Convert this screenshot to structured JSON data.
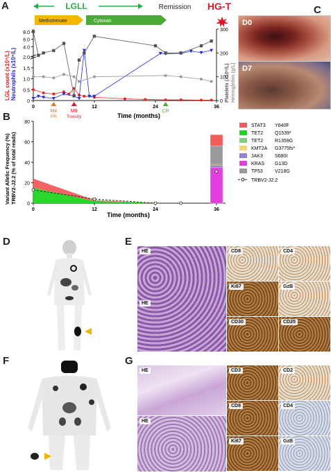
{
  "panels": {
    "A": "A",
    "B": "B",
    "C": "C",
    "D": "D",
    "E": "E",
    "F": "F",
    "G": "G"
  },
  "timeline": {
    "lgll": "LGLL",
    "remission": "Remission",
    "hgt": "HG-T",
    "methotrexate": "Methotrexate",
    "cytoxan": "Cytoxan"
  },
  "colors": {
    "lgl": "#e8241f",
    "neutrophils": "#1f2bd8",
    "platelets": "#555555",
    "hemoglobin": "#999999",
    "methotrexate": "#f5b800",
    "cytoxan": "#4caa3a",
    "green_arrow": "#2aaa4a",
    "hgt": "#e0162b",
    "stat3": "#f25c5c",
    "tet2_q": "#22d422",
    "tet2_r": "#7ed07e",
    "kmt2a": "#f5d76e",
    "jak3": "#9a80d8",
    "kras": "#e040e0",
    "tp53": "#9a9a9a"
  },
  "chart_data": [
    {
      "type": "line",
      "panel": "A",
      "xlabel": "Time (months)",
      "ylabel_left_lgl": "LGL count (x10⁹/L)",
      "ylabel_left_neut": "Neutrophils (x10⁹/L)",
      "ylabel_right_platelets": "Platelets (x10⁹/L)",
      "ylabel_right_hemoglobin": "Hemoglobin (g/L)",
      "x_ticks": [
        "0",
        "12",
        "24",
        "36"
      ],
      "y_left_ticks": [
        "0",
        "0.5",
        "1.0",
        "1.5",
        "2.0",
        "4.0",
        "6.0",
        "8.0"
      ],
      "y_right_ticks": [
        "0",
        "100",
        "200",
        "300"
      ],
      "xlim": [
        0,
        36
      ],
      "annotations": [
        {
          "label": "M4",
          "sub": "PR",
          "x": 4,
          "color": "#e07b20"
        },
        {
          "label": "M8",
          "sub": "Toxicity",
          "x": 8,
          "color": "#e0162b"
        },
        {
          "label": "CR",
          "sub": "",
          "x": 26,
          "color": "#4caa3a"
        }
      ],
      "series": [
        {
          "name": "LGL",
          "x": [
            0,
            2,
            4,
            6,
            7,
            8,
            9,
            10,
            12,
            18,
            22,
            26,
            29,
            33,
            35
          ],
          "y": [
            0.5,
            0.35,
            0.3,
            0.4,
            0.3,
            0.55,
            0.25,
            0.2,
            0.15,
            0.08,
            0.05,
            0.03,
            0.03,
            0.02,
            0.02
          ]
        },
        {
          "name": "Neutrophils",
          "x": [
            0,
            1,
            2,
            4,
            6,
            8,
            9,
            10,
            11,
            12,
            25,
            26,
            29,
            31,
            33,
            35
          ],
          "y": [
            0.1,
            0.2,
            0.15,
            0.1,
            0.3,
            0.2,
            0.1,
            3.0,
            0.2,
            0.2,
            2.2,
            2.1,
            2.2,
            2.8,
            2.4,
            3.0
          ]
        },
        {
          "name": "Platelets",
          "x": [
            0,
            1,
            2,
            4,
            6,
            8,
            9,
            10,
            12,
            24,
            26,
            29,
            33,
            35
          ],
          "y": [
            290,
            190,
            200,
            210,
            240,
            20,
            170,
            200,
            270,
            230,
            200,
            200,
            230,
            250
          ]
        },
        {
          "name": "Hemoglobin",
          "x": [
            0,
            2,
            4,
            6,
            8,
            9,
            12,
            26,
            29,
            33,
            35
          ],
          "y": [
            100,
            100,
            95,
            110,
            100,
            80,
            100,
            105,
            100,
            90,
            80
          ]
        }
      ]
    },
    {
      "type": "area",
      "panel": "B",
      "xlabel": "Time (months)",
      "ylabel": "Variant Allelic Frequency (%)",
      "ylabel2": "TRBV2-J2.2 (% of total reads)",
      "x_ticks": [
        "0",
        "12",
        "24",
        "36"
      ],
      "y_ticks": [
        "0",
        "20",
        "40",
        "60",
        "80"
      ],
      "ylim": [
        0,
        80
      ],
      "x": [
        0,
        12,
        24
      ],
      "series": [
        {
          "name": "STAT3",
          "detail": "Y640F",
          "values": [
            9,
            1,
            0
          ],
          "final": 11
        },
        {
          "name": "TET2",
          "detail": "Q1539*",
          "values": [
            15,
            2,
            0
          ],
          "final": 1
        },
        {
          "name": "TET2",
          "detail": "R1359G",
          "values": [
            0,
            0,
            0
          ],
          "final": 0
        },
        {
          "name": "KMT2A",
          "detail": "G3775fs*",
          "values": [
            0,
            0,
            0
          ],
          "final": 0
        },
        {
          "name": "JAK3",
          "detail": "S680I",
          "values": [
            0,
            0,
            0
          ],
          "final": 2
        },
        {
          "name": "KRAS",
          "detail": "G13D",
          "values": [
            0,
            0,
            0
          ],
          "final": 35
        },
        {
          "name": "TP53",
          "detail": "V218G",
          "values": [
            0,
            0,
            0
          ],
          "final": 18
        }
      ],
      "bar_at": 36,
      "clone_line": {
        "name": "TRBV2-J2.2",
        "x": [
          0,
          12,
          24,
          29,
          36
        ],
        "y": [
          13,
          4,
          0,
          0,
          31
        ]
      }
    }
  ],
  "photos": {
    "d0": "D0",
    "d7": "D7"
  },
  "histology_E": {
    "big": [
      "HE",
      "HE"
    ],
    "tiles": [
      "CD8",
      "CD4",
      "Ki67",
      "GzB",
      "CD30",
      "CD25"
    ]
  },
  "histology_G": {
    "big": [
      "HE",
      "HE"
    ],
    "tiles": [
      "CD3",
      "CD2",
      "CD8",
      "CD4",
      "Ki67",
      "GzB"
    ]
  }
}
